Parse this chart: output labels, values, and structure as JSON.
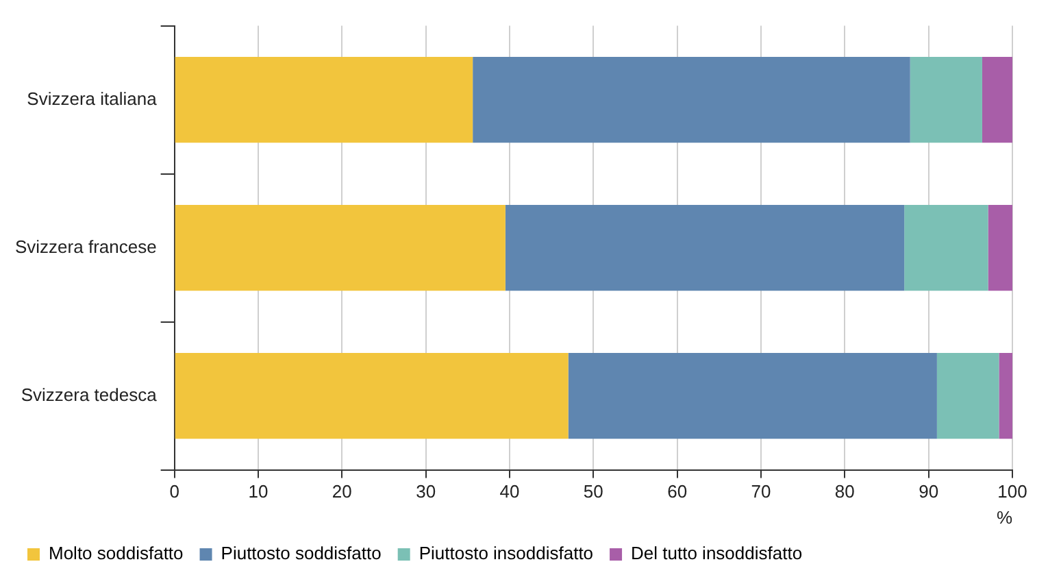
{
  "chart_data": {
    "type": "bar",
    "orientation": "horizontal",
    "stacked": true,
    "categories": [
      "Svizzera italiana",
      "Svizzera francese",
      "Svizzera tedesca"
    ],
    "series": [
      {
        "name": "Molto soddisfatto",
        "color": "#f2c53d",
        "values": [
          35.6,
          39.5,
          47.0
        ]
      },
      {
        "name": "Piuttosto soddisfatto",
        "color": "#5f86b0",
        "values": [
          52.2,
          47.6,
          44.0
        ]
      },
      {
        "name": "Piuttosto insoddisfatto",
        "color": "#7bc0b5",
        "values": [
          8.6,
          10.0,
          7.4
        ]
      },
      {
        "name": "Del tutto insoddisfatto",
        "color": "#a85ea8",
        "values": [
          3.6,
          2.9,
          1.6
        ]
      }
    ],
    "xlabel": "%",
    "xlim": [
      0,
      100
    ],
    "xticks": [
      0,
      10,
      20,
      30,
      40,
      50,
      60,
      70,
      80,
      90,
      100
    ],
    "grid": "x",
    "legend": "bottom"
  }
}
